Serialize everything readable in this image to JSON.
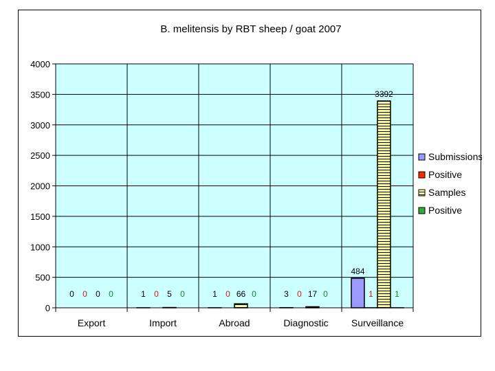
{
  "chart_data": {
    "type": "bar",
    "title": "B. melitensis by RBT sheep / goat 2007",
    "categories": [
      "Export",
      "Import",
      "Abroad",
      "Diagnostic",
      "Surveillance"
    ],
    "ylim": [
      0,
      4000
    ],
    "yticks": [
      0,
      500,
      1000,
      1500,
      2000,
      2500,
      3000,
      3500,
      4000
    ],
    "grid": true,
    "legend_position": "right",
    "series": [
      {
        "name": "Submissions",
        "values": [
          0,
          1,
          1,
          3,
          484
        ],
        "color": "#9999ff",
        "pattern": "solid",
        "label_color": "#000000"
      },
      {
        "name": "Positive",
        "values": [
          0,
          0,
          0,
          0,
          1
        ],
        "color": "#ff2a00",
        "pattern": "solid",
        "label_color": "#cc2200"
      },
      {
        "name": "Samples",
        "values": [
          0,
          5,
          66,
          17,
          3392
        ],
        "color": "#ffff99",
        "pattern": "hatch",
        "label_color": "#000000"
      },
      {
        "name": "Positive",
        "values": [
          0,
          0,
          0,
          0,
          1
        ],
        "color": "#33aa33",
        "pattern": "solid",
        "label_color": "#118811"
      }
    ],
    "plot_background": "#ccffff"
  }
}
